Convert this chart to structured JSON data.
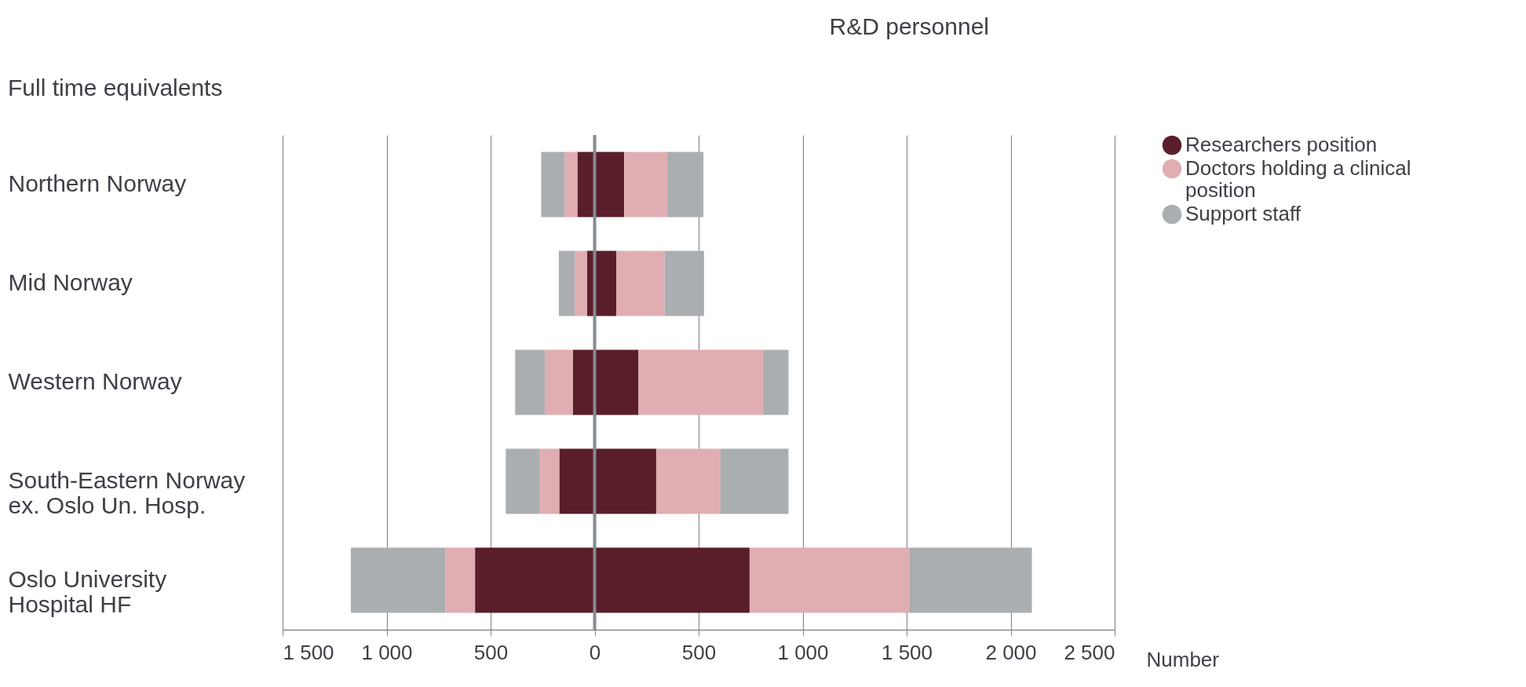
{
  "chart_data": {
    "type": "bar",
    "orientation": "horizontal",
    "stacked": true,
    "title": "R&D personnel",
    "xlabel": "Number",
    "annotations": [
      "Full time equivalents"
    ],
    "categories": [
      "Northern Norway",
      "Mid Norway",
      "Western Norway",
      "South-Eastern Norway ex. Oslo Un. Hosp.",
      "Oslo University Hospital HF"
    ],
    "series": [
      {
        "name": "Researchers position",
        "color": "#5a1e2b",
        "values": [
          142,
          105,
          211,
          296,
          745
        ]
      },
      {
        "name": "Doctors holding a clinical position",
        "color": "#e0aeb2",
        "values": [
          207,
          231,
          599,
          309,
          767
        ]
      },
      {
        "name": "Support staff",
        "color": "#aaaeb1",
        "values": [
          174,
          190,
          122,
          327,
          590
        ]
      },
      {
        "color": "#5a1e2b",
        "values": [
          -83,
          -37,
          -105,
          -170,
          -575
        ]
      },
      {
        "color": "#e0aeb2",
        "values": [
          -61,
          -59,
          -135,
          -96,
          -142
        ]
      },
      {
        "color": "#aaaeb1",
        "values": [
          -113,
          -76,
          -142,
          -161,
          -455
        ]
      }
    ],
    "xlim": [
      -1500,
      2500
    ],
    "xticks": [
      {
        "value": -1500,
        "label": "1 500"
      },
      {
        "value": -1000,
        "label": "1 000"
      },
      {
        "value": -500,
        "label": "500"
      },
      0,
      500,
      {
        "value": 1000,
        "label": "1 000"
      },
      {
        "value": 1500,
        "label": "1 500"
      },
      {
        "value": 2000,
        "label": "2 000"
      },
      {
        "value": 2500,
        "label": "2 500"
      }
    ],
    "ref_lines": [
      {
        "axis": "x",
        "value": 0,
        "color": "#858b93"
      }
    ],
    "grid": "x",
    "legend": "top right"
  }
}
